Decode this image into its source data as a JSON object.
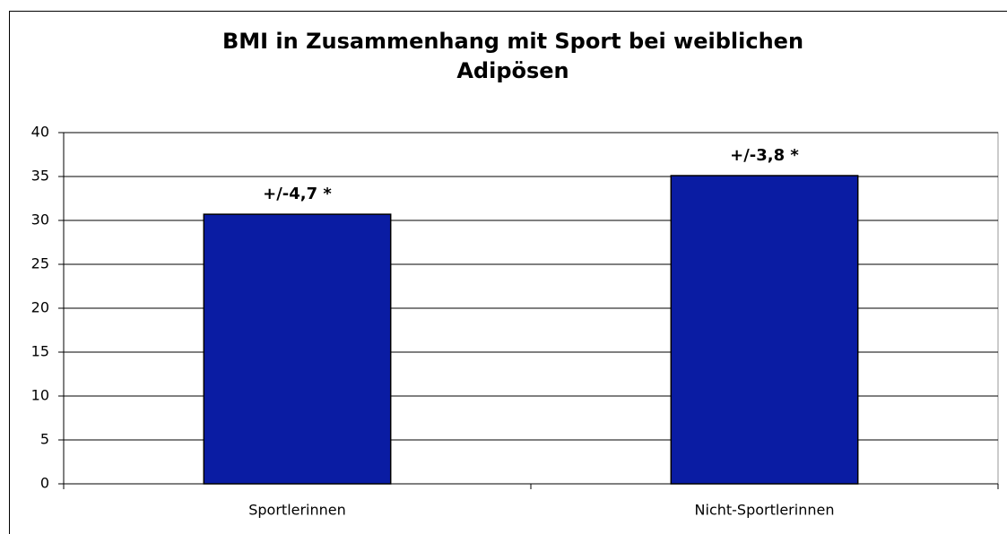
{
  "chart_data": {
    "type": "bar",
    "title": [
      "BMI in Zusammenhang mit Sport bei weiblichen",
      "Adipösen"
    ],
    "categories": [
      "Sportlerinnen",
      "Nicht-Sportlerinnen"
    ],
    "values": [
      30.7,
      35.1
    ],
    "annotations": [
      "+/-4,7 *",
      "+/-3,8 *"
    ],
    "color": "#0a1ca3",
    "ylim": [
      0,
      40
    ],
    "yticks": [
      0,
      5,
      10,
      15,
      20,
      25,
      30,
      35,
      40
    ],
    "grid": true
  }
}
